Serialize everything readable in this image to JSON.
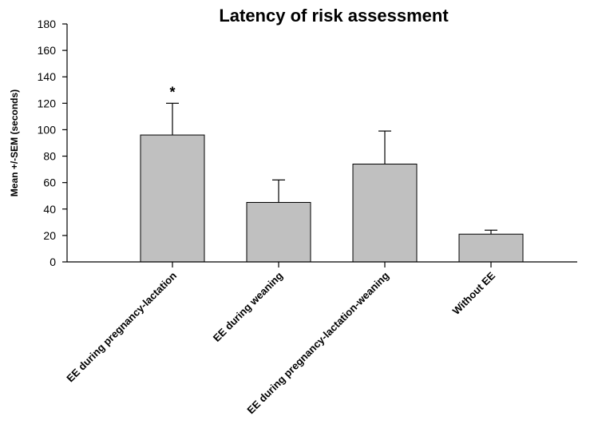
{
  "chart_data": {
    "type": "bar",
    "title": "Latency of risk assessment",
    "xlabel": "",
    "ylabel": "Mean +/-SEM (seconds)",
    "ylim": [
      0,
      180
    ],
    "yticks": [
      0,
      20,
      40,
      60,
      80,
      100,
      120,
      140,
      160,
      180
    ],
    "categories": [
      "EE during pregnancy-lactation",
      "EE during weaning",
      "EE during pregnancy-lactation-weaning",
      "Without EE"
    ],
    "values": [
      96,
      45,
      74,
      21
    ],
    "error_plus": [
      24,
      17,
      25,
      3
    ],
    "annotations": [
      "*",
      "",
      "",
      ""
    ],
    "bar_color": "#c0c0c0",
    "grid": false,
    "legend": "none"
  }
}
